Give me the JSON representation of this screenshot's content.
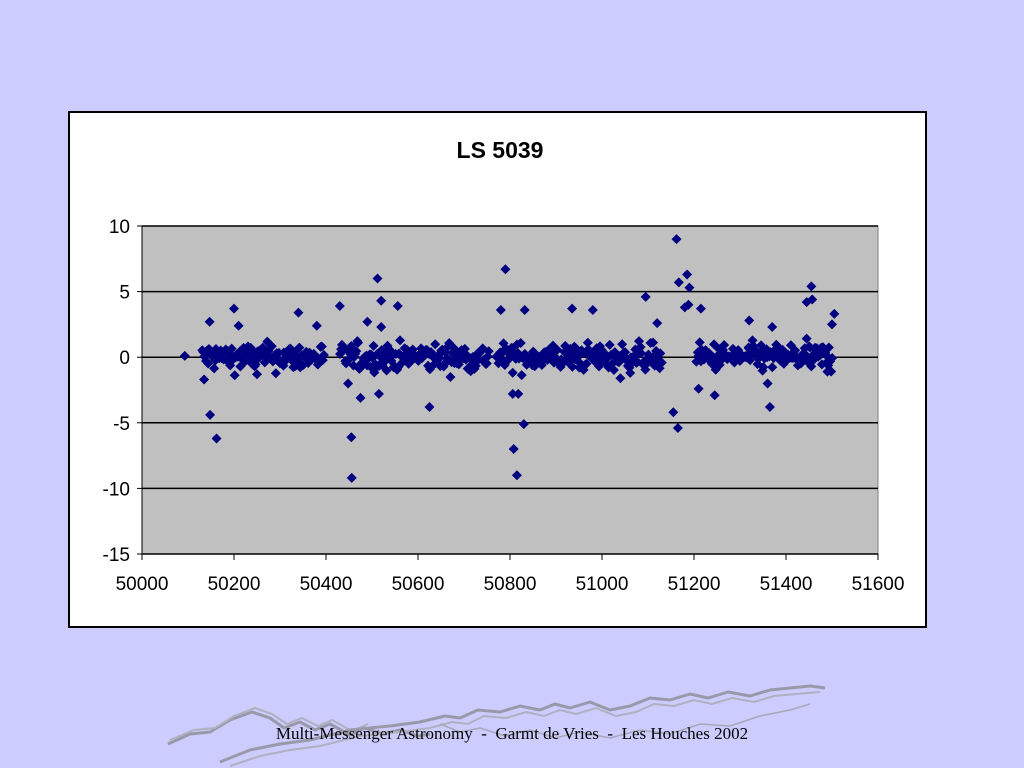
{
  "footer": {
    "text": "Multi-Messenger Astronomy  -  Garmt de Vries  -  Les Houches 2002"
  },
  "colors": {
    "background": "#ccccff",
    "plot_area": "#c0c0c0",
    "marker": "#000080",
    "gridline": "#000000"
  },
  "chart_data": {
    "type": "scatter",
    "title": "LS 5039",
    "xlabel": "",
    "ylabel": "",
    "xlim": [
      50000,
      51600
    ],
    "ylim": [
      -15,
      10
    ],
    "x_ticks": [
      "50000",
      "50200",
      "50400",
      "50600",
      "50800",
      "51000",
      "51200",
      "51400",
      "51600"
    ],
    "y_ticks": [
      "10",
      "5",
      "0",
      "-5",
      "-10",
      "-15"
    ],
    "grid": "horizontal major gridlines",
    "legend": "none",
    "marker": "diamond",
    "outliers": [
      {
        "x": 50093,
        "y": 0.1
      },
      {
        "x": 50135,
        "y": -1.7
      },
      {
        "x": 50147,
        "y": 2.7
      },
      {
        "x": 50148,
        "y": -4.4
      },
      {
        "x": 50162,
        "y": -6.2
      },
      {
        "x": 50200,
        "y": 3.7
      },
      {
        "x": 50210,
        "y": 2.4
      },
      {
        "x": 50250,
        "y": -1.3
      },
      {
        "x": 50340,
        "y": 3.4
      },
      {
        "x": 50380,
        "y": 2.4
      },
      {
        "x": 50430,
        "y": 3.9
      },
      {
        "x": 50448,
        "y": -2.0
      },
      {
        "x": 50455,
        "y": -6.1
      },
      {
        "x": 50456,
        "y": -9.2
      },
      {
        "x": 50475,
        "y": -3.1
      },
      {
        "x": 50490,
        "y": 2.7
      },
      {
        "x": 50512,
        "y": 6.0
      },
      {
        "x": 50515,
        "y": -2.8
      },
      {
        "x": 50520,
        "y": 4.3
      },
      {
        "x": 50520,
        "y": 2.3
      },
      {
        "x": 50556,
        "y": 3.9
      },
      {
        "x": 50625,
        "y": -3.8
      },
      {
        "x": 50790,
        "y": 6.7
      },
      {
        "x": 50780,
        "y": 3.6
      },
      {
        "x": 50806,
        "y": -2.8
      },
      {
        "x": 50808,
        "y": -7.0
      },
      {
        "x": 50815,
        "y": -9.0
      },
      {
        "x": 50818,
        "y": -2.8
      },
      {
        "x": 50830,
        "y": -5.1
      },
      {
        "x": 50832,
        "y": 3.6
      },
      {
        "x": 50935,
        "y": 3.7
      },
      {
        "x": 50980,
        "y": 3.6
      },
      {
        "x": 51040,
        "y": -1.6
      },
      {
        "x": 51095,
        "y": 4.6
      },
      {
        "x": 51120,
        "y": 2.6
      },
      {
        "x": 51155,
        "y": -4.2
      },
      {
        "x": 51162,
        "y": 9.0
      },
      {
        "x": 51165,
        "y": -5.4
      },
      {
        "x": 51167,
        "y": 5.7
      },
      {
        "x": 51185,
        "y": 6.3
      },
      {
        "x": 51190,
        "y": 5.3
      },
      {
        "x": 51180,
        "y": 3.8
      },
      {
        "x": 51188,
        "y": 4.0
      },
      {
        "x": 51210,
        "y": -2.4
      },
      {
        "x": 51215,
        "y": 3.7
      },
      {
        "x": 51245,
        "y": -2.9
      },
      {
        "x": 51320,
        "y": 2.8
      },
      {
        "x": 51360,
        "y": -2.0
      },
      {
        "x": 51365,
        "y": -3.8
      },
      {
        "x": 51370,
        "y": 2.3
      },
      {
        "x": 51445,
        "y": 4.2
      },
      {
        "x": 51455,
        "y": 5.4
      },
      {
        "x": 51457,
        "y": 4.4
      },
      {
        "x": 51490,
        "y": -1.1
      },
      {
        "x": 51505,
        "y": 3.3
      },
      {
        "x": 51500,
        "y": 2.5
      }
    ],
    "main_cluster": {
      "observation_windows": [
        [
          50130,
          50395
        ],
        [
          50430,
          50755
        ],
        [
          50770,
          51130
        ],
        [
          51205,
          51500
        ]
      ],
      "typical_y_range": [
        -1.6,
        1.6
      ]
    }
  }
}
